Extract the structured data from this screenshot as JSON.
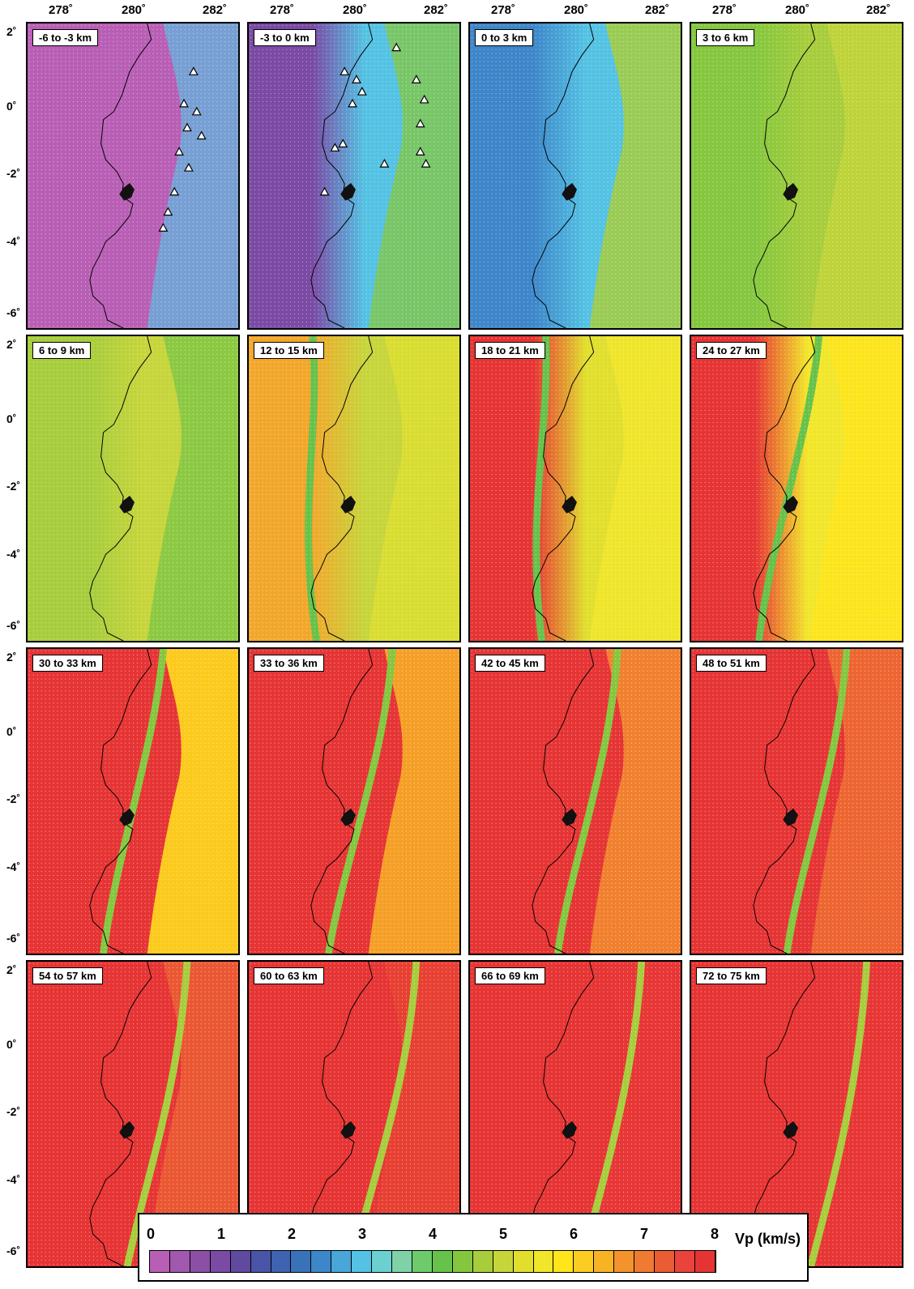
{
  "lon_labels": [
    "278˚",
    "280˚",
    "282˚"
  ],
  "lat_labels": [
    "2˚",
    "0˚",
    "-2˚",
    "-4˚",
    "-6˚"
  ],
  "panels": [
    {
      "label": "-6 to -3 km",
      "theme": "shallow1"
    },
    {
      "label": "-3 to 0 km",
      "theme": "shallow2"
    },
    {
      "label": "0 to 3 km",
      "theme": "shallow3"
    },
    {
      "label": "3 to 6 km",
      "theme": "shallow4"
    },
    {
      "label": "6 to 9 km",
      "theme": "mid1"
    },
    {
      "label": "12 to 15 km",
      "theme": "mid2"
    },
    {
      "label": "18 to 21 km",
      "theme": "mid3"
    },
    {
      "label": "24 to 27 km",
      "theme": "mid4"
    },
    {
      "label": "30 to 33 km",
      "theme": "deep1"
    },
    {
      "label": "33 to 36 km",
      "theme": "deep2"
    },
    {
      "label": "42 to 45 km",
      "theme": "deep3"
    },
    {
      "label": "48 to 51 km",
      "theme": "deep4"
    },
    {
      "label": "54 to 57 km",
      "theme": "deeper1"
    },
    {
      "label": "60 to 63 km",
      "theme": "deeper2"
    },
    {
      "label": "66 to 69 km",
      "theme": "deeper3"
    },
    {
      "label": "72 to 75 km",
      "theme": "deeper4"
    }
  ],
  "legend": {
    "title": "Vp (km/s)",
    "ticks": [
      "0",
      "1",
      "2",
      "3",
      "4",
      "5",
      "6",
      "7",
      "8"
    ],
    "colors": [
      "#b85fb5",
      "#a158ae",
      "#8c4fa6",
      "#7a4aa4",
      "#5f4a9f",
      "#4a54a8",
      "#3f63b1",
      "#3a72ba",
      "#3d86c9",
      "#48a6d9",
      "#54c2e3",
      "#6ccfd0",
      "#7fd2a8",
      "#6ecb6c",
      "#66c24a",
      "#84c73f",
      "#a7cd3c",
      "#c6d53a",
      "#e1df2c",
      "#f2e62a",
      "#ffe51a",
      "#fbcc22",
      "#f8b324",
      "#f4932d",
      "#f07a31",
      "#ea5c33",
      "#e9433b",
      "#e63434"
    ]
  }
}
